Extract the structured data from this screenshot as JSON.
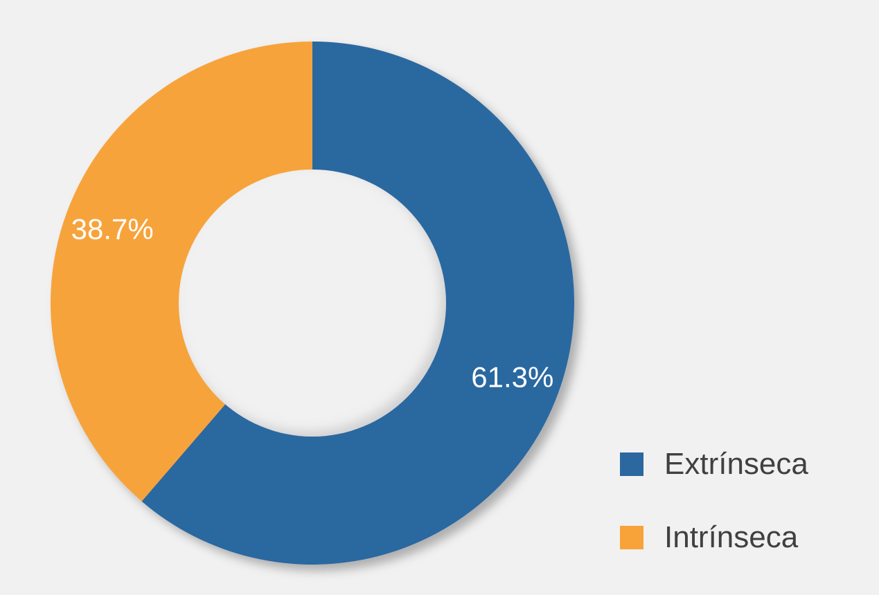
{
  "chart_data": {
    "type": "pie",
    "variant": "donut",
    "categories": [
      "Extrínseca",
      "Intrínseca"
    ],
    "values": [
      61.3,
      38.7
    ],
    "data_labels": [
      "61.3%",
      "38.7%"
    ],
    "colors": [
      "#2c67a0",
      "#f7a33a"
    ],
    "legend_position": "bottom-right",
    "title": ""
  },
  "legend": {
    "items": [
      {
        "label": "Extrínseca",
        "color": "#2c67a0"
      },
      {
        "label": "Intrínseca",
        "color": "#f7a33a"
      }
    ]
  }
}
